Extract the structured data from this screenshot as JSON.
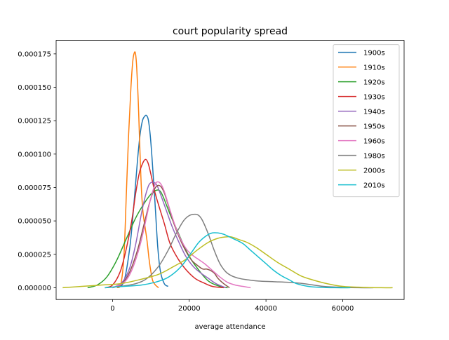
{
  "chart_data": {
    "type": "line",
    "title": "court popularity spread",
    "xlabel": "average attendance",
    "ylabel": "",
    "xlim": [
      -14700,
      76000
    ],
    "ylim": [
      -8.8e-06,
      0.0001851
    ],
    "xticks": [
      0,
      20000,
      40000,
      60000
    ],
    "xtick_labels": [
      "0",
      "20000",
      "40000",
      "60000"
    ],
    "yticks": [
      0,
      2.5e-05,
      5e-05,
      7.5e-05,
      0.0001,
      0.000125,
      0.00015,
      0.000175
    ],
    "ytick_labels": [
      "0.000000",
      "0.000025",
      "0.000050",
      "0.000075",
      "0.000100",
      "0.000125",
      "0.000150",
      "0.000175"
    ],
    "grid": false,
    "legend_position": "top-right",
    "series": [
      {
        "name": "1900s",
        "color": "#1f77b4",
        "x": [
          1200,
          3000,
          4500,
          5500,
          6500,
          7200,
          7800,
          8300,
          8800,
          9300,
          9800,
          10300,
          11000,
          11800,
          12500,
          13500,
          14500
        ],
        "y": [
          0,
          5e-06,
          3e-05,
          6e-05,
          9.5e-05,
          0.000115,
          0.000125,
          0.000128,
          0.000129,
          0.000126,
          0.000115,
          9.7e-05,
          6.7e-05,
          3e-05,
          1.2e-05,
          3e-06,
          1e-06
        ]
      },
      {
        "name": "1910s",
        "color": "#ff7f0e",
        "x": [
          1200,
          2200,
          3000,
          3600,
          4200,
          4800,
          5300,
          5700,
          6000,
          6300,
          6700,
          7000,
          7300,
          7600,
          8000,
          8500,
          9000,
          9500,
          10000,
          10500,
          11200,
          12000
        ],
        "y": [
          0,
          3e-06,
          2.5e-05,
          7e-05,
          0.000115,
          0.00015,
          0.00017,
          0.000176,
          0.000175,
          0.000165,
          0.00014,
          0.000115,
          9e-05,
          7e-05,
          5.5e-05,
          4.5e-05,
          3.5e-05,
          2.2e-05,
          1.2e-05,
          5e-06,
          2e-06,
          0
        ]
      },
      {
        "name": "1920s",
        "color": "#2ca02c",
        "x": [
          -6500,
          -4000,
          -1500,
          1000,
          3500,
          6000,
          8000,
          10000,
          11500,
          12500,
          13500,
          15000,
          17000,
          19500,
          22000,
          25000,
          28000,
          30000
        ],
        "y": [
          0,
          2e-06,
          8e-06,
          2e-05,
          3.6e-05,
          5.2e-05,
          6.2e-05,
          7e-05,
          7.3e-05,
          7.2e-05,
          6.6e-05,
          5.5e-05,
          4.2e-05,
          2.6e-05,
          1.5e-05,
          5e-06,
          1e-06,
          0
        ]
      },
      {
        "name": "1930s",
        "color": "#d62728",
        "x": [
          -2000,
          0,
          2000,
          3500,
          5000,
          6000,
          7000,
          8000,
          8700,
          9300,
          10000,
          11000,
          12000,
          13500,
          15000,
          17000,
          19000,
          21500,
          23500,
          26000,
          29000
        ],
        "y": [
          0,
          2e-06,
          1.2e-05,
          2.8e-05,
          5e-05,
          7e-05,
          8.6e-05,
          9.4e-05,
          9.6e-05,
          9.3e-05,
          8.5e-05,
          7.2e-05,
          6.2e-05,
          4.8e-05,
          3.3e-05,
          2.2e-05,
          1.4e-05,
          7e-06,
          4e-06,
          1e-06,
          0
        ]
      },
      {
        "name": "1940s",
        "color": "#9467bd",
        "x": [
          0,
          2500,
          4500,
          6000,
          7500,
          8500,
          9500,
          10500,
          11500,
          12500,
          14000,
          15500,
          17000,
          19000,
          21000,
          23000,
          25000,
          27000,
          29500
        ],
        "y": [
          0,
          4e-06,
          1.5e-05,
          3.2e-05,
          5.5e-05,
          6.8e-05,
          7.7e-05,
          7.9e-05,
          7.7e-05,
          7e-05,
          5.8e-05,
          4.6e-05,
          3.6e-05,
          2.4e-05,
          1.6e-05,
          1.1e-05,
          7e-06,
          3e-06,
          0
        ]
      },
      {
        "name": "1950s",
        "color": "#8c564b",
        "x": [
          0,
          2500,
          4500,
          6500,
          8000,
          9500,
          10500,
          11500,
          12500,
          13500,
          14500,
          16000,
          17500,
          19000,
          20500,
          22000,
          23500,
          24500,
          25500,
          26500,
          27500,
          29000,
          30500
        ],
        "y": [
          0,
          3e-06,
          1.2e-05,
          2.8e-05,
          4.5e-05,
          6.2e-05,
          7.1e-05,
          7.6e-05,
          7.6e-05,
          7.1e-05,
          6.2e-05,
          4.8e-05,
          3.7e-05,
          2.8e-05,
          2.1e-05,
          1.7e-05,
          1.4e-05,
          1.4e-05,
          1.3e-05,
          1.1e-05,
          7e-06,
          3e-06,
          0
        ]
      },
      {
        "name": "1960s",
        "color": "#e377c2",
        "x": [
          0,
          3000,
          5000,
          7000,
          8500,
          9800,
          10800,
          11500,
          12500,
          13500,
          15000,
          16500,
          18000,
          19500,
          21000,
          22500,
          24000,
          26000,
          28000,
          30000,
          32000,
          34000,
          36000
        ],
        "y": [
          0,
          4e-06,
          1.3e-05,
          3e-05,
          4.8e-05,
          6.5e-05,
          7.5e-05,
          7.9e-05,
          7.8e-05,
          7.2e-05,
          5.8e-05,
          4.5e-05,
          3.5e-05,
          2.8e-05,
          2.4e-05,
          2.1e-05,
          1.8e-05,
          1.3e-05,
          8e-06,
          4e-06,
          2e-06,
          1e-06,
          0
        ]
      },
      {
        "name": "1980s",
        "color": "#7f7f7f",
        "x": [
          -2000,
          2000,
          6000,
          9000,
          12000,
          14500,
          16500,
          18500,
          20000,
          21500,
          22500,
          23500,
          25000,
          26500,
          28000,
          29500,
          31000,
          33000,
          35000,
          38000,
          42000,
          46000,
          50000,
          55000,
          60000,
          64000,
          68000
        ],
        "y": [
          0,
          1e-06,
          3e-06,
          7e-06,
          1.6e-05,
          2.8e-05,
          4e-05,
          5e-05,
          5.4e-05,
          5.5e-05,
          5.4e-05,
          5e-05,
          4e-05,
          2.8e-05,
          1.8e-05,
          1.2e-05,
          9e-06,
          7e-06,
          6e-06,
          5e-06,
          4.5e-06,
          4e-06,
          3e-06,
          1e-06,
          3e-07,
          0,
          0
        ]
      },
      {
        "name": "2000s",
        "color": "#bcbd22",
        "x": [
          -13000,
          -8000,
          -3000,
          2000,
          7000,
          12000,
          16000,
          19000,
          22000,
          25000,
          27500,
          29500,
          31000,
          33000,
          35000,
          37500,
          40000,
          43000,
          46000,
          49000,
          52000,
          56000,
          60000,
          65000,
          70000,
          73000
        ],
        "y": [
          0,
          1e-06,
          2e-06,
          3e-06,
          6e-06,
          1e-05,
          1.6e-05,
          2.1e-05,
          2.8e-05,
          3.4e-05,
          3.7e-05,
          3.8e-05,
          3.8e-05,
          3.6e-05,
          3.4e-05,
          3e-05,
          2.5e-05,
          1.9e-05,
          1.4e-05,
          9e-06,
          6e-06,
          3e-06,
          1e-06,
          3e-07,
          0,
          0
        ]
      },
      {
        "name": "2010s",
        "color": "#17becf",
        "x": [
          -2000,
          3000,
          7500,
          11000,
          14000,
          16500,
          18500,
          20500,
          22500,
          24500,
          26000,
          27500,
          29000,
          30500,
          32000,
          34000,
          36000,
          38000,
          40000,
          42000,
          44000,
          46000,
          48000,
          51000,
          54000,
          58000,
          62000
        ],
        "y": [
          0,
          1e-06,
          2e-06,
          4e-06,
          7e-06,
          1.2e-05,
          1.8e-05,
          2.6e-05,
          3.4e-05,
          3.9e-05,
          4.1e-05,
          4.1e-05,
          4e-05,
          3.8e-05,
          3.6e-05,
          3.3e-05,
          2.8e-05,
          2.3e-05,
          1.8e-05,
          1.3e-05,
          9e-06,
          6e-06,
          3e-06,
          1e-06,
          3e-07,
          0,
          0
        ]
      }
    ]
  }
}
